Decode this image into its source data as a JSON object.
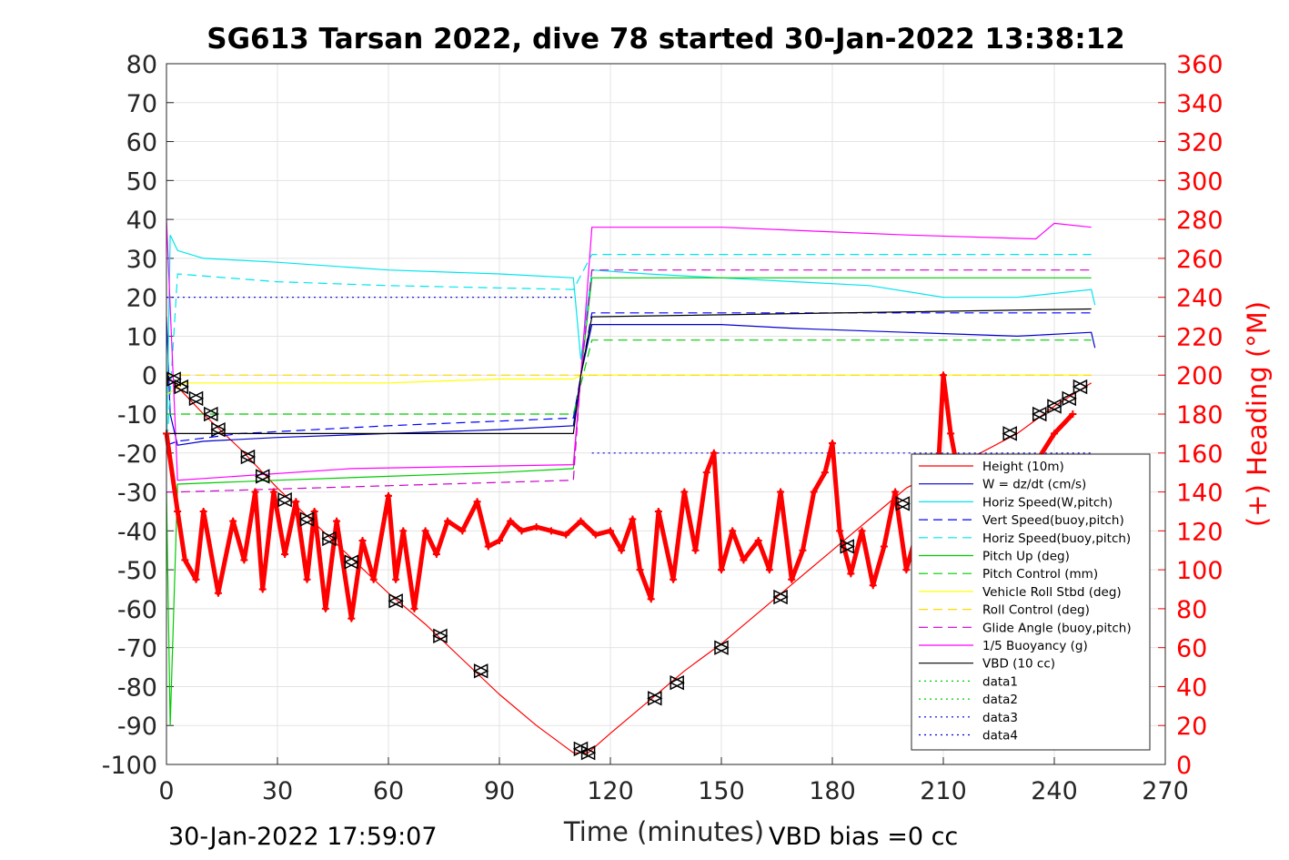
{
  "chart_data": {
    "type": "line",
    "title": "SG613 Tarsan 2022, dive 78 started 30-Jan-2022 13:38:12",
    "xlabel": "Time (minutes)",
    "ylabel": "",
    "y2label": "(+) Heading (°M)",
    "xlim": [
      0,
      270
    ],
    "ylim": [
      -100,
      80
    ],
    "y2lim": [
      0,
      360
    ],
    "xticks": [
      0,
      30,
      60,
      90,
      120,
      150,
      180,
      210,
      240,
      270
    ],
    "yticks": [
      -100,
      -90,
      -80,
      -70,
      -60,
      -50,
      -40,
      -30,
      -20,
      -10,
      0,
      10,
      20,
      30,
      40,
      50,
      60,
      70,
      80
    ],
    "y2ticks": [
      0,
      20,
      40,
      60,
      80,
      100,
      120,
      140,
      160,
      180,
      200,
      220,
      240,
      260,
      280,
      300,
      320,
      340,
      360
    ],
    "grid": true,
    "legend_position": "lower-right",
    "footer_left": "30-Jan-2022 17:59:07",
    "footer_right": "VBD bias =0 cc",
    "colors": {
      "height": "#ff0000",
      "w": "#0000cd",
      "horiz_w": "#00e5ee",
      "vert_buoy": "#0000ff",
      "horiz_buoy": "#00e5ee",
      "pitch_up": "#00cc00",
      "pitch_control": "#00cc00",
      "roll": "#ffff00",
      "roll_control": "#ffd700",
      "glide": "#cc00cc",
      "buoyancy": "#ff00ff",
      "vbd": "#000000",
      "heading": "#ff0000"
    },
    "series": [
      {
        "name": "Height (10m)",
        "style": "solid",
        "color": "#ff0000",
        "x": [
          0,
          2,
          5,
          10,
          20,
          30,
          40,
          50,
          60,
          70,
          80,
          90,
          100,
          110,
          114,
          120,
          130,
          140,
          150,
          160,
          170,
          180,
          190,
          200,
          210,
          220,
          230,
          240,
          250
        ],
        "y": [
          0,
          -2,
          -5,
          -10,
          -19,
          -29,
          -38,
          -47,
          -56,
          -64,
          -73,
          -82,
          -90,
          -97,
          -97,
          -92,
          -84,
          -76,
          -69,
          -61,
          -53,
          -45,
          -37,
          -29,
          -24,
          -20,
          -15,
          -8,
          -2
        ]
      },
      {
        "name": "W = dz/dt (cm/s)",
        "style": "solid",
        "color": "#0000cd",
        "x": [
          0,
          1,
          3,
          10,
          30,
          60,
          90,
          110,
          112,
          115,
          130,
          150,
          170,
          200,
          230,
          250,
          251
        ],
        "y": [
          15,
          -10,
          -18,
          -17,
          -16,
          -15,
          -14,
          -13,
          0,
          13,
          13,
          13,
          12,
          11,
          10,
          11,
          7
        ]
      },
      {
        "name": "Horiz Speed(W,pitch)",
        "style": "solid",
        "color": "#00e5ee",
        "x": [
          0,
          1,
          3,
          10,
          30,
          60,
          90,
          110,
          112,
          115,
          130,
          150,
          170,
          190,
          210,
          230,
          250,
          251
        ],
        "y": [
          -20,
          36,
          32,
          30,
          29,
          27,
          26,
          25,
          4,
          27,
          26,
          25,
          24,
          23,
          20,
          20,
          22,
          18
        ]
      },
      {
        "name": "Vert Speed(buoy,pitch)",
        "style": "dashed",
        "color": "#0000ff",
        "x": [
          0,
          3,
          20,
          60,
          110,
          115,
          250
        ],
        "y": [
          -18,
          -17,
          -15,
          -13,
          -11,
          16,
          16
        ]
      },
      {
        "name": "Horiz Speed(buoy,pitch)",
        "style": "dashed",
        "color": "#00e5ee",
        "x": [
          0,
          3,
          30,
          60,
          110,
          115,
          250
        ],
        "y": [
          -20,
          26,
          24,
          23,
          22,
          31,
          31
        ]
      },
      {
        "name": "Pitch Up (deg)",
        "style": "solid",
        "color": "#00cc00",
        "x": [
          0,
          1,
          3,
          30,
          60,
          90,
          110,
          112,
          115,
          150,
          200,
          250
        ],
        "y": [
          -30,
          -90,
          -28,
          -27,
          -26,
          -25,
          -24,
          0,
          25,
          25,
          25,
          25
        ]
      },
      {
        "name": "Pitch Control (mm)",
        "style": "dashed",
        "color": "#00cc00",
        "x": [
          0,
          3,
          110,
          115,
          250
        ],
        "y": [
          -10,
          -10,
          -10,
          9,
          9
        ]
      },
      {
        "name": "Vehicle Roll Stbd (deg)",
        "style": "solid",
        "color": "#ffff00",
        "x": [
          0,
          5,
          30,
          60,
          90,
          110,
          112,
          115,
          150,
          200,
          250
        ],
        "y": [
          -5,
          -2,
          -2,
          -2,
          -1,
          -1,
          0,
          0,
          0,
          0,
          0
        ]
      },
      {
        "name": "Roll Control (deg)",
        "style": "dashed",
        "color": "#ffd700",
        "x": [
          0,
          5,
          30,
          60,
          90,
          110,
          115,
          250
        ],
        "y": [
          0,
          0,
          0,
          0,
          0,
          0,
          0,
          0
        ]
      },
      {
        "name": "Glide Angle (buoy,pitch)",
        "style": "dashed",
        "color": "#cc00cc",
        "x": [
          0,
          3,
          110,
          112,
          115,
          250
        ],
        "y": [
          -30,
          -30,
          -27,
          0,
          27,
          27
        ]
      },
      {
        "name": "1/5 Buoyancy (g)",
        "style": "solid",
        "color": "#ff00ff",
        "x": [
          0,
          3,
          50,
          110,
          112,
          115,
          150,
          200,
          235,
          240,
          250
        ],
        "y": [
          40,
          -27,
          -24,
          -23,
          0,
          38,
          38,
          36,
          35,
          39,
          38
        ]
      },
      {
        "name": "VBD (10 cc)",
        "style": "solid",
        "color": "#000000",
        "x": [
          0,
          3,
          110,
          112,
          115,
          250
        ],
        "y": [
          -15,
          -15,
          -15,
          0,
          15,
          17
        ]
      },
      {
        "name": "data1",
        "style": "dotted",
        "color": "#00cc00",
        "x": [],
        "y": []
      },
      {
        "name": "data2",
        "style": "dotted",
        "color": "#00cc00",
        "x": [],
        "y": []
      },
      {
        "name": "data3",
        "style": "dotted",
        "color": "#0000cd",
        "x": [
          0,
          110
        ],
        "y": [
          20,
          20
        ]
      },
      {
        "name": "data4",
        "style": "dotted",
        "color": "#0000cd",
        "x": [
          115,
          250
        ],
        "y": [
          -20,
          -20
        ]
      }
    ],
    "heading_series": {
      "name": "Heading",
      "marker": "+",
      "color": "#ff0000",
      "x": [
        0,
        3,
        5,
        8,
        10,
        14,
        18,
        21,
        24,
        26,
        29,
        32,
        35,
        38,
        40,
        43,
        46,
        50,
        53,
        56,
        60,
        62,
        64,
        67,
        70,
        73,
        76,
        80,
        84,
        87,
        90,
        93,
        96,
        100,
        104,
        108,
        112,
        116,
        120,
        123,
        126,
        128,
        131,
        133,
        137,
        140,
        143,
        146,
        148,
        150,
        153,
        156,
        160,
        163,
        166,
        169,
        172,
        175,
        178,
        180,
        182,
        185,
        188,
        191,
        194,
        197,
        200,
        203,
        206,
        208,
        210,
        212,
        215,
        220,
        230,
        240,
        245
      ],
      "y": [
        170,
        130,
        105,
        95,
        130,
        88,
        125,
        105,
        140,
        90,
        140,
        108,
        135,
        95,
        130,
        80,
        125,
        75,
        115,
        95,
        138,
        95,
        120,
        80,
        120,
        108,
        125,
        120,
        135,
        112,
        115,
        125,
        120,
        122,
        120,
        118,
        125,
        118,
        120,
        110,
        126,
        100,
        85,
        130,
        95,
        140,
        110,
        150,
        160,
        100,
        120,
        105,
        115,
        100,
        140,
        95,
        110,
        140,
        150,
        165,
        120,
        98,
        120,
        92,
        112,
        140,
        100,
        120,
        150,
        130,
        200,
        170,
        140,
        110,
        140,
        170,
        180
      ]
    },
    "diamond_markers": {
      "x": [
        2,
        4,
        8,
        12,
        14,
        22,
        26,
        32,
        38,
        44,
        50,
        62,
        74,
        85,
        112,
        114,
        132,
        138,
        150,
        166,
        184,
        199,
        228,
        236,
        240,
        244,
        247
      ],
      "y": [
        -1,
        -3,
        -6,
        -10,
        -14,
        -21,
        -26,
        -32,
        -37,
        -42,
        -48,
        -58,
        -67,
        -76,
        -96,
        -97,
        -83,
        -79,
        -70,
        -57,
        -44,
        -33,
        -15,
        -10,
        -8,
        -6,
        -3
      ]
    }
  }
}
